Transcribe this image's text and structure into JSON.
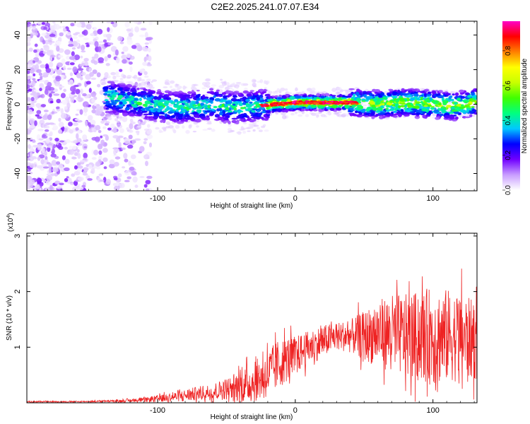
{
  "title": "C2E2.2025.241.07.07.E34",
  "chart_data": [
    {
      "type": "heatmap",
      "name": "spectrogram",
      "xlabel": "Height of straight line (km)",
      "ylabel": "Frequency (Hz)",
      "xlim": [
        -195,
        132
      ],
      "ylim": [
        -50,
        48
      ],
      "xticks": [
        -100,
        0,
        100
      ],
      "yticks": [
        -40,
        -20,
        0,
        20,
        40
      ],
      "colorbar": {
        "label": "Normalized spectral amplitude",
        "range": [
          0,
          0.97
        ],
        "ticks": [
          "0.0",
          "0.2",
          "0.4",
          "0.6",
          "0.8"
        ],
        "tick_values": [
          0.0,
          0.2,
          0.4,
          0.6,
          0.8
        ],
        "colors": [
          "#ffffff",
          "#c89cff",
          "#7000ff",
          "#0000ff",
          "#00c8ff",
          "#00ff80",
          "#40ff00",
          "#c8ff00",
          "#ffff00",
          "#ff8000",
          "#ff0000",
          "#ff00c8"
        ]
      },
      "ridge": {
        "x": [
          -135,
          -120,
          -100,
          -80,
          -60,
          -45,
          -30,
          -15,
          0,
          20,
          40,
          60,
          80,
          100,
          115,
          130
        ],
        "freq": [
          4,
          2,
          -1,
          -2,
          0,
          -2,
          -1,
          0,
          1,
          1,
          1,
          0,
          1,
          0,
          -1,
          1
        ]
      }
    },
    {
      "type": "line",
      "name": "snr",
      "xlabel": "Height of straight line (km)",
      "ylabel": "SNR (10 * v/v)",
      "scale_label": "(x10",
      "scale_exponent": "4",
      "xlim": [
        -195,
        132
      ],
      "ylim": [
        0,
        3.05
      ],
      "xticks": [
        -100,
        0,
        100
      ],
      "yticks": [
        1,
        2,
        3
      ],
      "color": "#ee2222",
      "envelope": {
        "x": [
          -195,
          -160,
          -130,
          -110,
          -90,
          -75,
          -60,
          -50,
          -40,
          -32,
          -25,
          -18,
          -12,
          -5,
          0,
          10,
          20,
          30,
          40,
          50,
          60,
          70,
          80,
          90,
          100,
          110,
          120,
          132
        ],
        "base": [
          0.02,
          0.02,
          0.03,
          0.05,
          0.1,
          0.15,
          0.2,
          0.25,
          0.3,
          0.35,
          0.45,
          0.55,
          0.7,
          0.8,
          0.85,
          1.0,
          1.1,
          1.2,
          1.2,
          1.2,
          1.25,
          1.25,
          1.2,
          1.2,
          1.2,
          1.2,
          1.2,
          1.1
        ],
        "amp": [
          0.01,
          0.01,
          0.02,
          0.04,
          0.08,
          0.12,
          0.15,
          0.2,
          0.3,
          0.35,
          0.4,
          0.45,
          0.45,
          0.4,
          0.35,
          0.3,
          0.3,
          0.25,
          0.3,
          0.45,
          0.6,
          0.7,
          0.75,
          0.8,
          0.9,
          0.85,
          0.8,
          0.7
        ]
      }
    }
  ]
}
